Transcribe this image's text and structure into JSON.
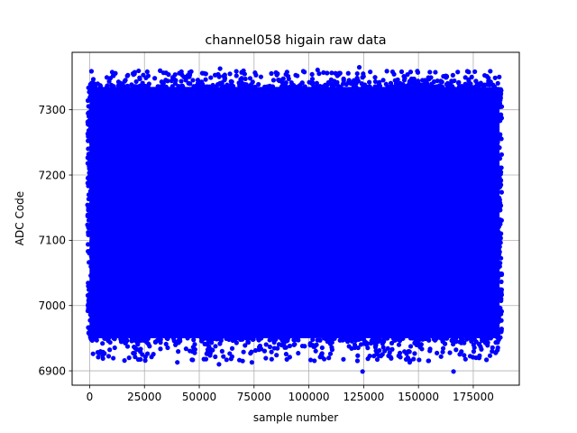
{
  "chart_data": {
    "type": "scatter",
    "title": "channel058 higain raw data",
    "xlabel": "sample number",
    "ylabel": "ADC Code",
    "xlim": [
      -8000,
      196000
    ],
    "ylim": [
      6878,
      7388
    ],
    "xticks": [
      0,
      25000,
      50000,
      75000,
      100000,
      125000,
      150000,
      175000
    ],
    "yticks": [
      6900,
      7000,
      7100,
      7200,
      7300
    ],
    "grid": true,
    "marker_color": "#0000ff",
    "series": [
      {
        "x_range": [
          0,
          187000
        ],
        "dense_band": [
          6950,
          7335
        ],
        "dense_band_secondary_gap": [
          7050,
          7070
        ],
        "sparse_band": [
          6915,
          7360
        ]
      }
    ],
    "outliers": [
      {
        "x": 124500,
        "y": 6899
      },
      {
        "x": 166000,
        "y": 6899
      },
      {
        "x": 59000,
        "y": 6910
      },
      {
        "x": 74000,
        "y": 6913
      },
      {
        "x": 40000,
        "y": 6913
      },
      {
        "x": 146000,
        "y": 6913
      },
      {
        "x": 107000,
        "y": 6918
      },
      {
        "x": 18000,
        "y": 6920
      },
      {
        "x": 61000,
        "y": 6922
      },
      {
        "x": 24000,
        "y": 6925
      },
      {
        "x": 131000,
        "y": 6926
      },
      {
        "x": 123000,
        "y": 7365
      },
      {
        "x": 59500,
        "y": 7363
      },
      {
        "x": 104000,
        "y": 7361
      },
      {
        "x": 128000,
        "y": 7358
      },
      {
        "x": 85000,
        "y": 7357
      },
      {
        "x": 53000,
        "y": 7355
      },
      {
        "x": 64000,
        "y": 7355
      },
      {
        "x": 20000,
        "y": 7354
      },
      {
        "x": 36000,
        "y": 7354
      },
      {
        "x": 145000,
        "y": 7354
      },
      {
        "x": 94000,
        "y": 7353
      },
      {
        "x": 113000,
        "y": 7352
      }
    ]
  }
}
